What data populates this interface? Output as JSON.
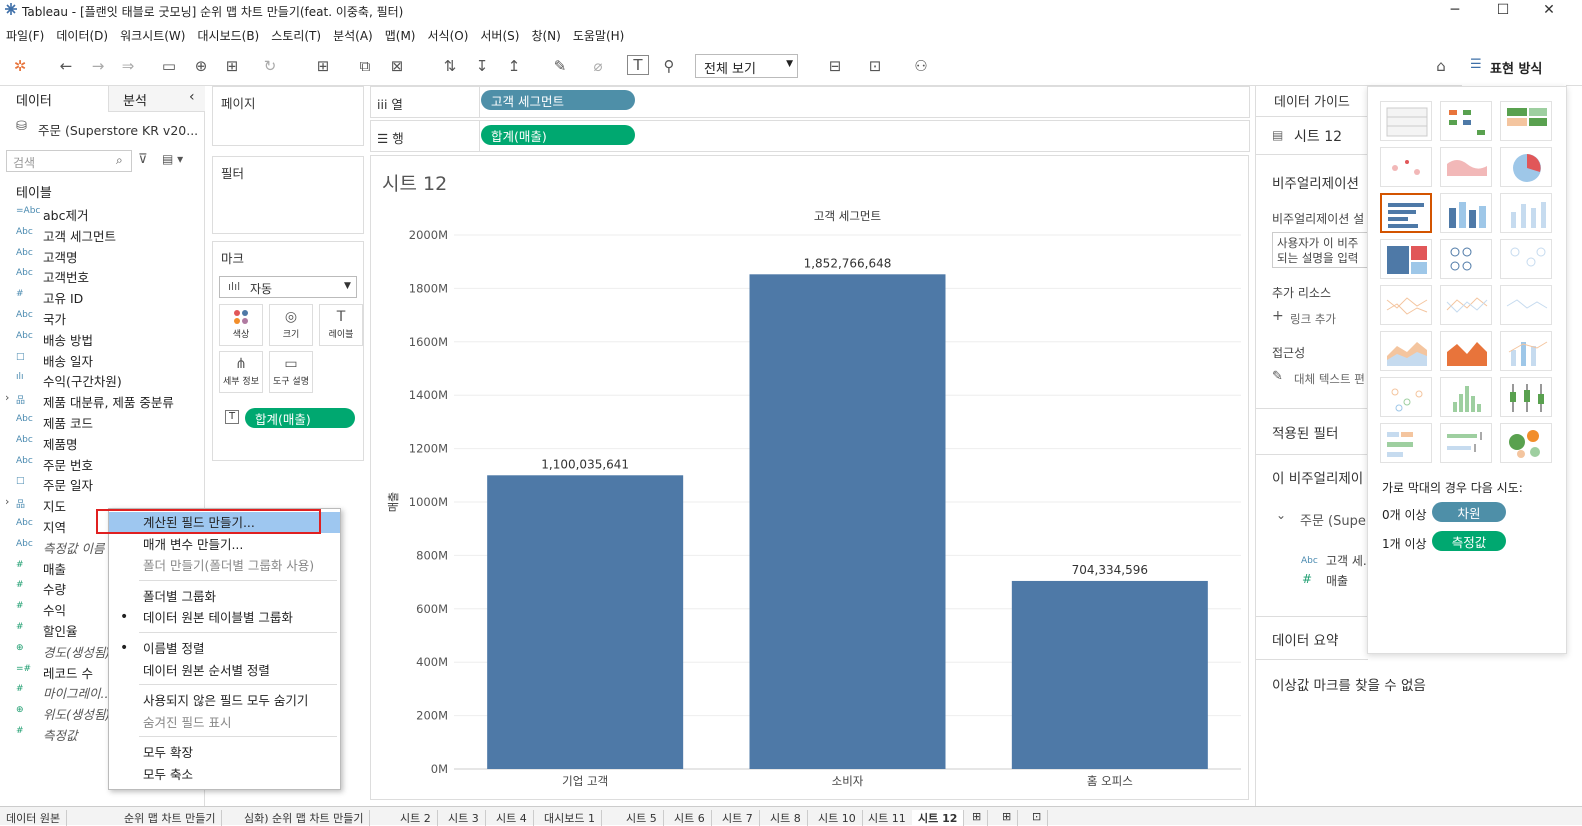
{
  "window": {
    "title": "Tableau - [플랜잇 태블로 굿모닝] 순위 맵 차트 만들기(feat. 이중축, 필터)"
  },
  "menu": [
    "파일(F)",
    "데이터(D)",
    "워크시트(W)",
    "대시보드(B)",
    "스토리(T)",
    "분석(A)",
    "맵(M)",
    "서식(O)",
    "서버(S)",
    "창(N)",
    "도움말(H)"
  ],
  "toolbar": {
    "view_select": "전체 보기",
    "showme_label": "표현 방식"
  },
  "left": {
    "tab_data": "데이터",
    "tab_analysis": "분석",
    "datasource": "주문 (Superstore KR v20...",
    "search_placeholder": "검색",
    "tables_label": "테이블",
    "fields": [
      {
        "type": "=Abc",
        "name": "abc제거",
        "italic": false,
        "green": false
      },
      {
        "type": "Abc",
        "name": "고객 세그먼트",
        "italic": false,
        "green": false
      },
      {
        "type": "Abc",
        "name": "고객명",
        "italic": false,
        "green": false
      },
      {
        "type": "Abc",
        "name": "고객번호",
        "italic": false,
        "green": false
      },
      {
        "type": "#",
        "name": "고유 ID",
        "italic": false,
        "green": false
      },
      {
        "type": "Abc",
        "name": "국가",
        "italic": false,
        "green": false
      },
      {
        "type": "Abc",
        "name": "배송 방법",
        "italic": false,
        "green": false
      },
      {
        "type": "□",
        "name": "배송 일자",
        "italic": false,
        "green": false
      },
      {
        "type": "ılı",
        "name": "수익(구간차원)",
        "italic": false,
        "green": false
      },
      {
        "type": "品",
        "name": "제품 대분류, 제품 중분류",
        "italic": false,
        "green": false,
        "expand": "›"
      },
      {
        "type": "Abc",
        "name": "제품 코드",
        "italic": false,
        "green": false
      },
      {
        "type": "Abc",
        "name": "제품명",
        "italic": false,
        "green": false
      },
      {
        "type": "Abc",
        "name": "주문 번호",
        "italic": false,
        "green": false
      },
      {
        "type": "□",
        "name": "주문 일자",
        "italic": false,
        "green": false
      },
      {
        "type": "品",
        "name": "지도",
        "italic": false,
        "green": false,
        "expand": "›"
      },
      {
        "type": "Abc",
        "name": "지역",
        "italic": false,
        "green": false
      },
      {
        "type": "Abc",
        "name": "측정값 이름",
        "italic": true,
        "green": false
      },
      {
        "type": "#",
        "name": "매출",
        "italic": false,
        "green": true
      },
      {
        "type": "#",
        "name": "수량",
        "italic": false,
        "green": true
      },
      {
        "type": "#",
        "name": "수익",
        "italic": false,
        "green": true
      },
      {
        "type": "#",
        "name": "할인율",
        "italic": false,
        "green": true
      },
      {
        "type": "⊕",
        "name": "경도(생성됨)",
        "italic": true,
        "green": true
      },
      {
        "type": "=#",
        "name": "레코드 수",
        "italic": false,
        "green": true
      },
      {
        "type": "#",
        "name": "마이그레이...",
        "italic": true,
        "green": true
      },
      {
        "type": "⊕",
        "name": "위도(생성됨)",
        "italic": true,
        "green": true
      },
      {
        "type": "#",
        "name": "측정값",
        "italic": true,
        "green": true
      }
    ]
  },
  "cards": {
    "pages": "페이지",
    "filters": "필터",
    "marks": "마크",
    "mark_type": "자동",
    "mark_buttons": [
      "색상",
      "크기",
      "레이블",
      "세부 정보",
      "도구 설명"
    ],
    "mark_pill": "합계(매출)"
  },
  "shelves": {
    "columns_label": "열",
    "rows_label": "행",
    "columns_pill": "고객 세그먼트",
    "rows_pill": "합계(매출)"
  },
  "sheet": {
    "title": "시트 12"
  },
  "chart_data": {
    "type": "bar",
    "title": "고객 세그먼트",
    "categories": [
      "기업 고객",
      "소비자",
      "홈 오피스"
    ],
    "values": [
      1100035641,
      1852766648,
      704334596
    ],
    "value_labels": [
      "1,100,035,641",
      "1,852,766,648",
      "704,334,596"
    ],
    "ylabel": "매출",
    "ylim": [
      0,
      2000000000
    ],
    "yticks": [
      0,
      200000000,
      400000000,
      600000000,
      800000000,
      1000000000,
      1200000000,
      1400000000,
      1600000000,
      1800000000,
      2000000000
    ],
    "ytick_labels": [
      "0M",
      "200M",
      "400M",
      "600M",
      "800M",
      "1000M",
      "1200M",
      "1400M",
      "1600M",
      "1800M",
      "2000M"
    ],
    "bar_color": "#4e79a7",
    "grid": true
  },
  "guide": {
    "title": "데이터 가이드",
    "sheet": "시트 12",
    "viz_label": "비주얼리제이션",
    "viz_desc": "비주얼리제이션 설",
    "desc_box1": "사용자가 이 비주",
    "desc_box2": "되는 설명을 입력",
    "resources": "추가 리소스",
    "add_link": "링크 추가",
    "access": "접근성",
    "alt_text": "대체 텍스트 편",
    "applied_filters": "적용된 필터",
    "this_viz": "이 비주얼리제이",
    "order": "주문 (Supe",
    "f1": "고객 세...",
    "f2": "매출",
    "summary": "데이터 요약",
    "outlier": "이상값 마크를 찾을 수 없음"
  },
  "showme": {
    "hint": "가로 막대의 경우 다음 시도:",
    "req1_count": "0개 이상",
    "req1_pill": "차원",
    "req2_count": "1개 이상",
    "req2_pill": "측정값"
  },
  "context_menu": [
    {
      "label": "계산된 필드 만들기...",
      "state": "hl"
    },
    {
      "label": "매개 변수 만들기...",
      "state": ""
    },
    {
      "label": "폴더 만들기(폴더별 그룹화 사용)",
      "state": "dis"
    },
    {
      "sep": true
    },
    {
      "label": "폴더별 그룹화",
      "state": ""
    },
    {
      "label": "데이터 원본 테이블별 그룹화",
      "state": "",
      "dot": true
    },
    {
      "sep": true
    },
    {
      "label": "이름별 정렬",
      "state": "",
      "dot": true
    },
    {
      "label": "데이터 원본 순서별 정렬",
      "state": ""
    },
    {
      "sep": true
    },
    {
      "label": "사용되지 않은 필드 모두 숨기기",
      "state": ""
    },
    {
      "label": "숨겨진 필드 표시",
      "state": "dis"
    },
    {
      "sep": true
    },
    {
      "label": "모두 확장",
      "state": ""
    },
    {
      "label": "모두 축소",
      "state": ""
    }
  ],
  "tabs": [
    "데이터 원본",
    "순위 맵 차트 만들기",
    "심화) 순위 맵 차트 만들기",
    "시트 2",
    "시트 3",
    "시트 4",
    "대시보드 1",
    "시트 5",
    "시트 6",
    "시트 7",
    "시트 8",
    "시트 10",
    "시트 11",
    "시트 12"
  ]
}
